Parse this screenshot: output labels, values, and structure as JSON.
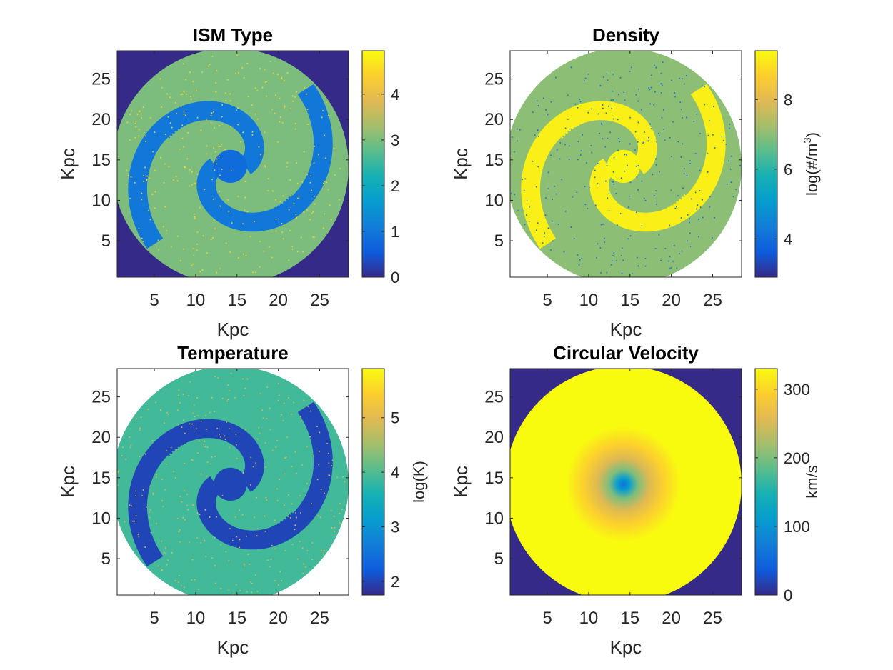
{
  "chart_data": [
    {
      "type": "heatmap",
      "title": "ISM Type",
      "xlabel": "Kpc",
      "ylabel": "Kpc",
      "xlim": [
        0.5,
        28.5
      ],
      "ylim": [
        0.5,
        28.5
      ],
      "xticks": [
        5,
        10,
        15,
        20,
        25
      ],
      "yticks": [
        5,
        10,
        15,
        20,
        25
      ],
      "colorbar": {
        "label": "",
        "min": 0,
        "max": 4.95,
        "ticks": [
          0,
          1,
          2,
          3,
          4
        ]
      },
      "field": {
        "outside": 0,
        "background": 3,
        "arms": 1,
        "core": 0.8,
        "speckle": 4.5
      },
      "colormap": "parula"
    },
    {
      "type": "heatmap",
      "title": "Density",
      "xlabel": "Kpc",
      "ylabel": "Kpc",
      "xlim": [
        0.5,
        28.5
      ],
      "ylim": [
        0.5,
        28.5
      ],
      "xticks": [
        5,
        10,
        15,
        20,
        25
      ],
      "yticks": [
        5,
        10,
        15,
        20,
        25
      ],
      "colorbar": {
        "label": "log(#/m",
        "label_superscript": "3",
        "label_suffix": ")",
        "min": 2.9,
        "max": 9.4,
        "ticks": [
          4,
          6,
          8
        ]
      },
      "field": {
        "outside": null,
        "background": 7.0,
        "arms": 9.2,
        "core": 9.3,
        "speckle": 4.0
      },
      "colormap": "parula"
    },
    {
      "type": "heatmap",
      "title": "Temperature",
      "xlabel": "Kpc",
      "ylabel": "Kpc",
      "xlim": [
        0.5,
        28.5
      ],
      "ylim": [
        0.5,
        28.5
      ],
      "xticks": [
        5,
        10,
        15,
        20,
        25
      ],
      "yticks": [
        5,
        10,
        15,
        20,
        25
      ],
      "colorbar": {
        "label": "log(K)",
        "min": 1.75,
        "max": 5.9,
        "ticks": [
          2,
          3,
          4,
          5
        ]
      },
      "field": {
        "outside": null,
        "background": 3.9,
        "arms": 2.0,
        "core": 2.0,
        "speckle": 5.0
      },
      "colormap": "parula"
    },
    {
      "type": "heatmap",
      "title": "Circular Velocity",
      "xlabel": "Kpc",
      "ylabel": "Kpc",
      "xlim": [
        0.5,
        28.5
      ],
      "ylim": [
        0.5,
        28.5
      ],
      "xticks": [
        5,
        10,
        15,
        20,
        25
      ],
      "yticks": [
        5,
        10,
        15,
        20,
        25
      ],
      "colorbar": {
        "label": "km/s",
        "min": 0,
        "max": 330,
        "ticks": [
          0,
          100,
          200,
          300
        ]
      },
      "field": {
        "outside": 0,
        "center_value": 60,
        "plateau_value": 330,
        "plateau_radius_kpc": 7
      },
      "colormap": "parula"
    }
  ]
}
